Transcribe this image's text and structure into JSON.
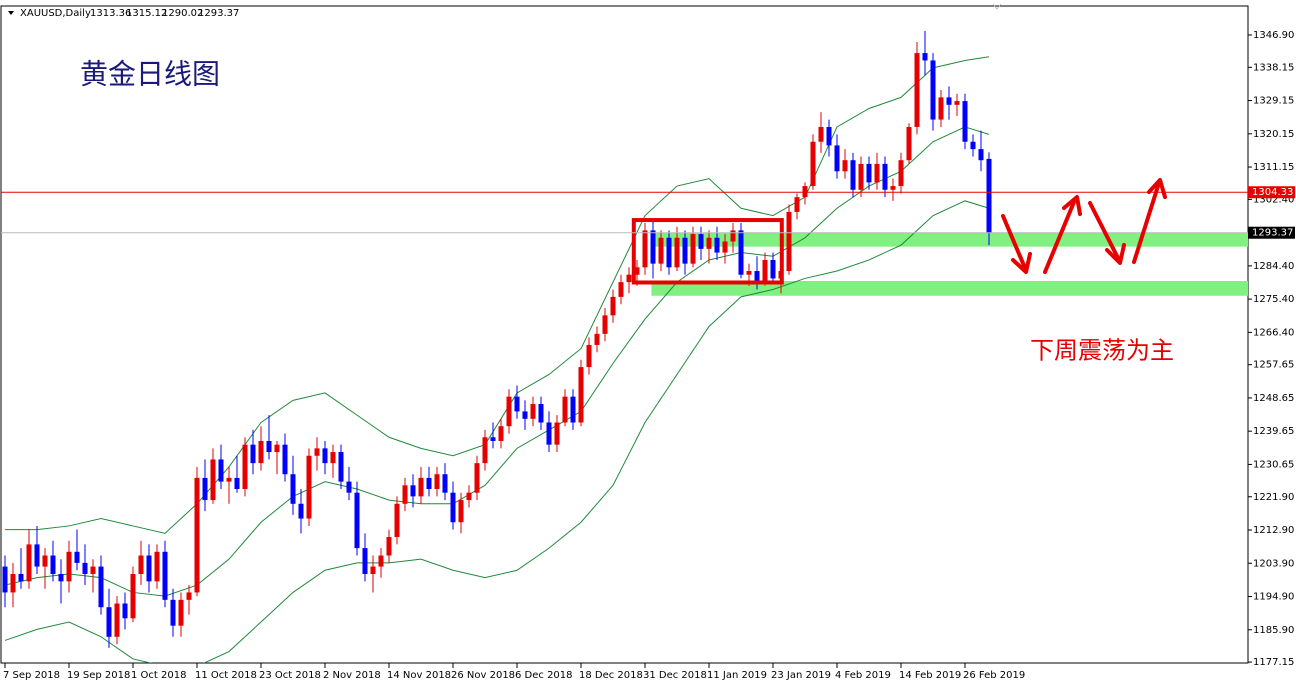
{
  "chart_data": {
    "type": "candlestick",
    "symbol": "XAUUSD,Daily",
    "title": "黄金日线图",
    "annotation": "下周震荡为主",
    "ylim": [
      1176.9,
      1354.2
    ],
    "xlim": [
      -0.5,
      155.375
    ],
    "yticks": [
      {
        "value": 1346.9,
        "label": "1346.90"
      },
      {
        "value": 1338.15,
        "label": "1338.15"
      },
      {
        "value": 1329.15,
        "label": "1329.15"
      },
      {
        "value": 1320.15,
        "label": "1320.15"
      },
      {
        "value": 1311.15,
        "label": "1311.15"
      },
      {
        "value": 1302.4,
        "label": "1302.40"
      },
      {
        "value": 1284.4,
        "label": "1284.40"
      },
      {
        "value": 1275.4,
        "label": "1275.40"
      },
      {
        "value": 1266.4,
        "label": "1266.40"
      },
      {
        "value": 1257.65,
        "label": "1257.65"
      },
      {
        "value": 1248.65,
        "label": "1248.65"
      },
      {
        "value": 1239.65,
        "label": "1239.65"
      },
      {
        "value": 1230.65,
        "label": "1230.65"
      },
      {
        "value": 1221.9,
        "label": "1221.90"
      },
      {
        "value": 1212.9,
        "label": "1212.90"
      },
      {
        "value": 1203.9,
        "label": "1203.90"
      },
      {
        "value": 1194.9,
        "label": "1194.90"
      },
      {
        "value": 1185.9,
        "label": "1185.90"
      },
      {
        "value": 1177.15,
        "label": "1177.15"
      }
    ],
    "xticks": [
      {
        "value": 0,
        "label": "7 Sep 2018"
      },
      {
        "value": 8,
        "label": "19 Sep 2018"
      },
      {
        "value": 16,
        "label": "1 Oct 2018"
      },
      {
        "value": 24,
        "label": "11 Oct 2018"
      },
      {
        "value": 32,
        "label": "23 Oct 2018"
      },
      {
        "value": 40,
        "label": "2 Nov 2018"
      },
      {
        "value": 48,
        "label": "14 Nov 2018"
      },
      {
        "value": 56,
        "label": "26 Nov 2018"
      },
      {
        "value": 64,
        "label": "6 Dec 2018"
      },
      {
        "value": 72,
        "label": "18 Dec 2018"
      },
      {
        "value": 80,
        "label": "31 Dec 2018"
      },
      {
        "value": 88,
        "label": "11 Jan 2019"
      },
      {
        "value": 96,
        "label": "23 Jan 2019"
      },
      {
        "value": 104,
        "label": "4 Feb 2019"
      },
      {
        "value": 112,
        "label": "14 Feb 2019"
      },
      {
        "value": 120,
        "label": "26 Feb 2019"
      }
    ],
    "up_color": "#e60000",
    "down_color": "#0000ff",
    "ohlc": [
      [
        1203,
        1206,
        1192,
        1196
      ],
      [
        1196,
        1204,
        1192,
        1201
      ],
      [
        1201,
        1208,
        1197,
        1199
      ],
      [
        1199,
        1213,
        1197,
        1209
      ],
      [
        1209,
        1214,
        1201,
        1203
      ],
      [
        1203,
        1208,
        1197,
        1206
      ],
      [
        1206,
        1210,
        1199,
        1201
      ],
      [
        1201,
        1205,
        1193,
        1199
      ],
      [
        1199,
        1210,
        1196,
        1207
      ],
      [
        1207,
        1213,
        1202,
        1204
      ],
      [
        1204,
        1209,
        1198,
        1201
      ],
      [
        1201,
        1205,
        1196,
        1203
      ],
      [
        1203,
        1206,
        1190,
        1192
      ],
      [
        1192,
        1197,
        1181,
        1184
      ],
      [
        1184,
        1195,
        1182,
        1193
      ],
      [
        1193,
        1196,
        1186,
        1189
      ],
      [
        1189,
        1203,
        1188,
        1201
      ],
      [
        1201,
        1210,
        1198,
        1206
      ],
      [
        1206,
        1209,
        1196,
        1199
      ],
      [
        1199,
        1209,
        1197,
        1207
      ],
      [
        1207,
        1210,
        1192,
        1194
      ],
      [
        1194,
        1197,
        1184,
        1187
      ],
      [
        1187,
        1196,
        1184,
        1194
      ],
      [
        1194,
        1198,
        1190,
        1196
      ],
      [
        1196,
        1230,
        1195,
        1227
      ],
      [
        1227,
        1232,
        1218,
        1221
      ],
      [
        1221,
        1235,
        1220,
        1232
      ],
      [
        1232,
        1236,
        1224,
        1226
      ],
      [
        1226,
        1230,
        1220,
        1227
      ],
      [
        1227,
        1233,
        1223,
        1224
      ],
      [
        1224,
        1238,
        1222,
        1236
      ],
      [
        1236,
        1240,
        1228,
        1231
      ],
      [
        1231,
        1241,
        1229,
        1237
      ],
      [
        1237,
        1244,
        1232,
        1234
      ],
      [
        1234,
        1237,
        1228,
        1236
      ],
      [
        1236,
        1239,
        1226,
        1228
      ],
      [
        1228,
        1233,
        1217,
        1220
      ],
      [
        1220,
        1224,
        1212,
        1216
      ],
      [
        1216,
        1235,
        1214,
        1233
      ],
      [
        1233,
        1238,
        1229,
        1235
      ],
      [
        1235,
        1237,
        1228,
        1231
      ],
      [
        1231,
        1236,
        1227,
        1234
      ],
      [
        1234,
        1236,
        1224,
        1226
      ],
      [
        1226,
        1230,
        1221,
        1223
      ],
      [
        1223,
        1226,
        1206,
        1208
      ],
      [
        1208,
        1212,
        1199,
        1201
      ],
      [
        1201,
        1206,
        1196,
        1203
      ],
      [
        1203,
        1208,
        1200,
        1206
      ],
      [
        1206,
        1213,
        1204,
        1211
      ],
      [
        1211,
        1222,
        1209,
        1220
      ],
      [
        1220,
        1227,
        1218,
        1225
      ],
      [
        1225,
        1228,
        1219,
        1222
      ],
      [
        1222,
        1230,
        1220,
        1227
      ],
      [
        1227,
        1230,
        1222,
        1224
      ],
      [
        1224,
        1230,
        1222,
        1228
      ],
      [
        1228,
        1231,
        1221,
        1223
      ],
      [
        1223,
        1226,
        1213,
        1215
      ],
      [
        1215,
        1223,
        1212,
        1221
      ],
      [
        1221,
        1225,
        1219,
        1223
      ],
      [
        1223,
        1233,
        1221,
        1231
      ],
      [
        1231,
        1240,
        1229,
        1238
      ],
      [
        1238,
        1242,
        1235,
        1237
      ],
      [
        1237,
        1243,
        1235,
        1241
      ],
      [
        1241,
        1251,
        1239,
        1249
      ],
      [
        1249,
        1252,
        1243,
        1245
      ],
      [
        1245,
        1248,
        1240,
        1243
      ],
      [
        1243,
        1249,
        1241,
        1247
      ],
      [
        1247,
        1249,
        1240,
        1242
      ],
      [
        1242,
        1245,
        1234,
        1236
      ],
      [
        1236,
        1244,
        1234,
        1242
      ],
      [
        1242,
        1251,
        1241,
        1249
      ],
      [
        1249,
        1251,
        1240,
        1242
      ],
      [
        1242,
        1259,
        1241,
        1257
      ],
      [
        1257,
        1265,
        1255,
        1263
      ],
      [
        1263,
        1268,
        1261,
        1266
      ],
      [
        1266,
        1273,
        1264,
        1271
      ],
      [
        1271,
        1278,
        1269,
        1276
      ],
      [
        1276,
        1282,
        1274,
        1280
      ],
      [
        1280,
        1284,
        1277,
        1282
      ],
      [
        1282,
        1286,
        1279,
        1284
      ],
      [
        1284,
        1296,
        1282,
        1294
      ],
      [
        1294,
        1297,
        1281,
        1285
      ],
      [
        1285,
        1294,
        1283,
        1292
      ],
      [
        1292,
        1294,
        1282,
        1284
      ],
      [
        1284,
        1295,
        1283,
        1292
      ],
      [
        1292,
        1294,
        1282,
        1285
      ],
      [
        1285,
        1295,
        1284,
        1293
      ],
      [
        1293,
        1295,
        1286,
        1289
      ],
      [
        1289,
        1294,
        1285,
        1292
      ],
      [
        1292,
        1295,
        1286,
        1288
      ],
      [
        1288,
        1293,
        1285,
        1291
      ],
      [
        1291,
        1296,
        1288,
        1294
      ],
      [
        1294,
        1296,
        1281,
        1282
      ],
      [
        1282,
        1285,
        1279,
        1283
      ],
      [
        1283,
        1287,
        1278,
        1280
      ],
      [
        1280,
        1288,
        1279,
        1286
      ],
      [
        1286,
        1288,
        1280,
        1281
      ],
      [
        1281,
        1285,
        1277,
        1283
      ],
      [
        1283,
        1301,
        1282,
        1299
      ],
      [
        1299,
        1304,
        1297,
        1303
      ],
      [
        1303,
        1307,
        1301,
        1306
      ],
      [
        1306,
        1320,
        1305,
        1318
      ],
      [
        1318,
        1326,
        1315,
        1322
      ],
      [
        1322,
        1324,
        1314,
        1317
      ],
      [
        1317,
        1320,
        1308,
        1310
      ],
      [
        1310,
        1316,
        1308,
        1313
      ],
      [
        1313,
        1315,
        1303,
        1305
      ],
      [
        1305,
        1314,
        1303,
        1312
      ],
      [
        1312,
        1314,
        1305,
        1307
      ],
      [
        1307,
        1315,
        1305,
        1312
      ],
      [
        1312,
        1314,
        1303,
        1305
      ],
      [
        1305,
        1308,
        1302,
        1306
      ],
      [
        1306,
        1315,
        1304,
        1313
      ],
      [
        1313,
        1323,
        1312,
        1322
      ],
      [
        1322,
        1345,
        1320,
        1342
      ],
      [
        1342,
        1348,
        1336,
        1340
      ],
      [
        1340,
        1342,
        1321,
        1324
      ],
      [
        1324,
        1332,
        1322,
        1330
      ],
      [
        1330,
        1333,
        1324,
        1328
      ],
      [
        1328,
        1331,
        1325,
        1329
      ],
      [
        1329,
        1331,
        1316,
        1318
      ],
      [
        1318,
        1320,
        1314,
        1316
      ],
      [
        1316,
        1321,
        1310,
        1313
      ],
      [
        1313.36,
        1315.12,
        1290.02,
        1293.37
      ]
    ],
    "bands": {
      "color": "#1f8a3a",
      "x": [
        0,
        4,
        8,
        12,
        16,
        20,
        24,
        28,
        32,
        36,
        40,
        44,
        48,
        52,
        56,
        60,
        64,
        68,
        72,
        76,
        80,
        84,
        88,
        92,
        96,
        100,
        104,
        108,
        112,
        116,
        120,
        123
      ],
      "series": [
        {
          "values": [
            1213,
            1213,
            1214,
            1216,
            1214,
            1212,
            1220,
            1230,
            1242,
            1248,
            1250,
            1244,
            1238,
            1235,
            1233,
            1236,
            1250,
            1255,
            1262,
            1280,
            1298,
            1306,
            1308,
            1300,
            1298,
            1303,
            1322,
            1327,
            1330,
            1338,
            1340,
            1341
          ]
        },
        {
          "values": [
            1198,
            1200,
            1201,
            1200,
            1196,
            1195,
            1198,
            1205,
            1215,
            1222,
            1226,
            1224,
            1221,
            1220,
            1220,
            1225,
            1235,
            1240,
            1245,
            1258,
            1270,
            1280,
            1286,
            1288,
            1287,
            1292,
            1300,
            1306,
            1310,
            1318,
            1322,
            1320
          ]
        },
        {
          "values": [
            1183,
            1186,
            1188,
            1184,
            1178,
            1176,
            1176,
            1180,
            1188,
            1196,
            1202,
            1204,
            1204,
            1205,
            1202,
            1200,
            1202,
            1208,
            1215,
            1225,
            1242,
            1255,
            1268,
            1276,
            1278,
            1281,
            1283,
            1286,
            1290,
            1298,
            1302,
            1300
          ]
        }
      ]
    },
    "level": {
      "value": 1304.33,
      "color": "#e60000"
    },
    "zones": {
      "color": "#80f080",
      "ranges": [
        [
          1289.6,
          1293.3
        ],
        [
          1276.3,
          1280.3
        ]
      ]
    },
    "box": {
      "color": "#e60000",
      "x": [
        78.6,
        97.1
      ],
      "y": [
        1279.9,
        1296.8
      ]
    }
  }
}
